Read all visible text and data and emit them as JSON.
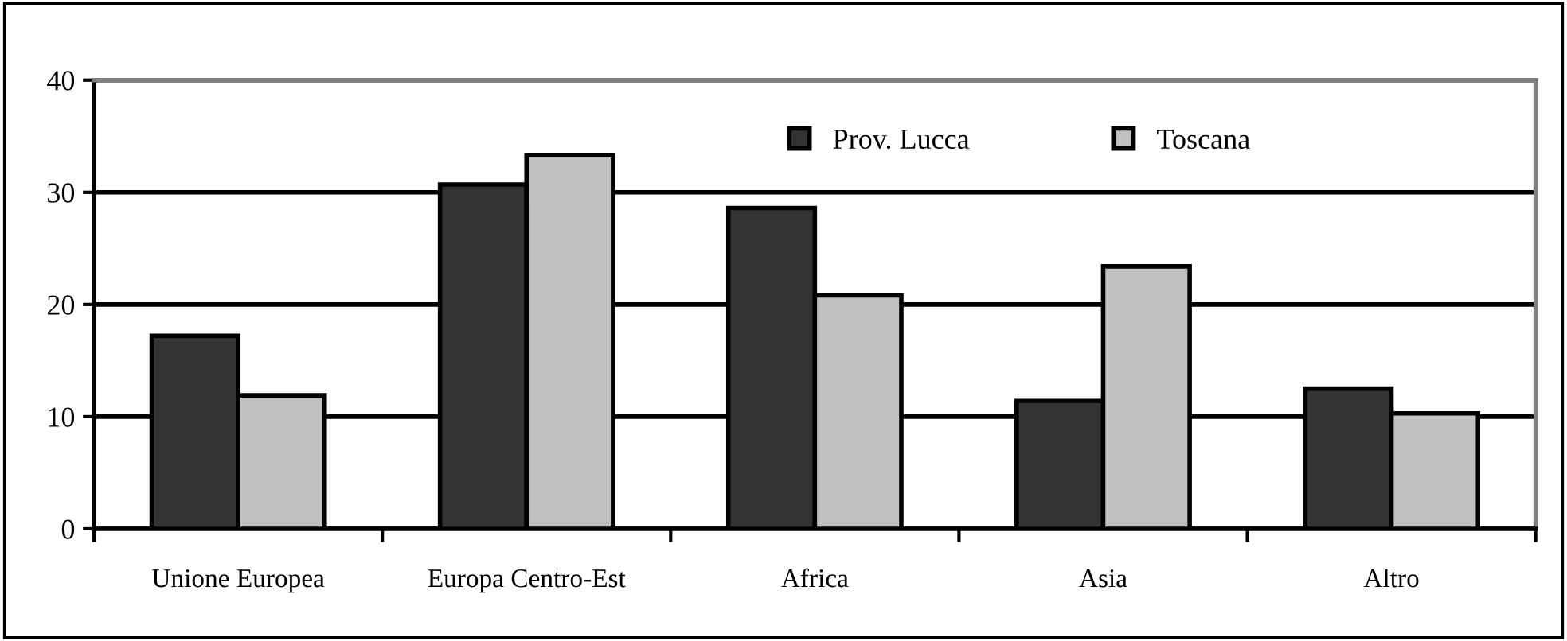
{
  "chart_data": {
    "type": "bar",
    "categories": [
      "Unione Europea",
      "Europa Centro-Est",
      "Africa",
      "Asia",
      "Altro"
    ],
    "series": [
      {
        "name": "Prov. Lucca",
        "color": "#333333",
        "values": [
          17.2,
          30.7,
          28.6,
          11.4,
          12.5
        ]
      },
      {
        "name": "Toscana",
        "color": "#c0c0c0",
        "values": [
          11.9,
          33.3,
          20.8,
          23.4,
          10.3
        ]
      }
    ],
    "ylim": [
      0,
      40
    ],
    "yticks": [
      0,
      10,
      20,
      30,
      40
    ],
    "grid": "y",
    "legend": "top right"
  }
}
